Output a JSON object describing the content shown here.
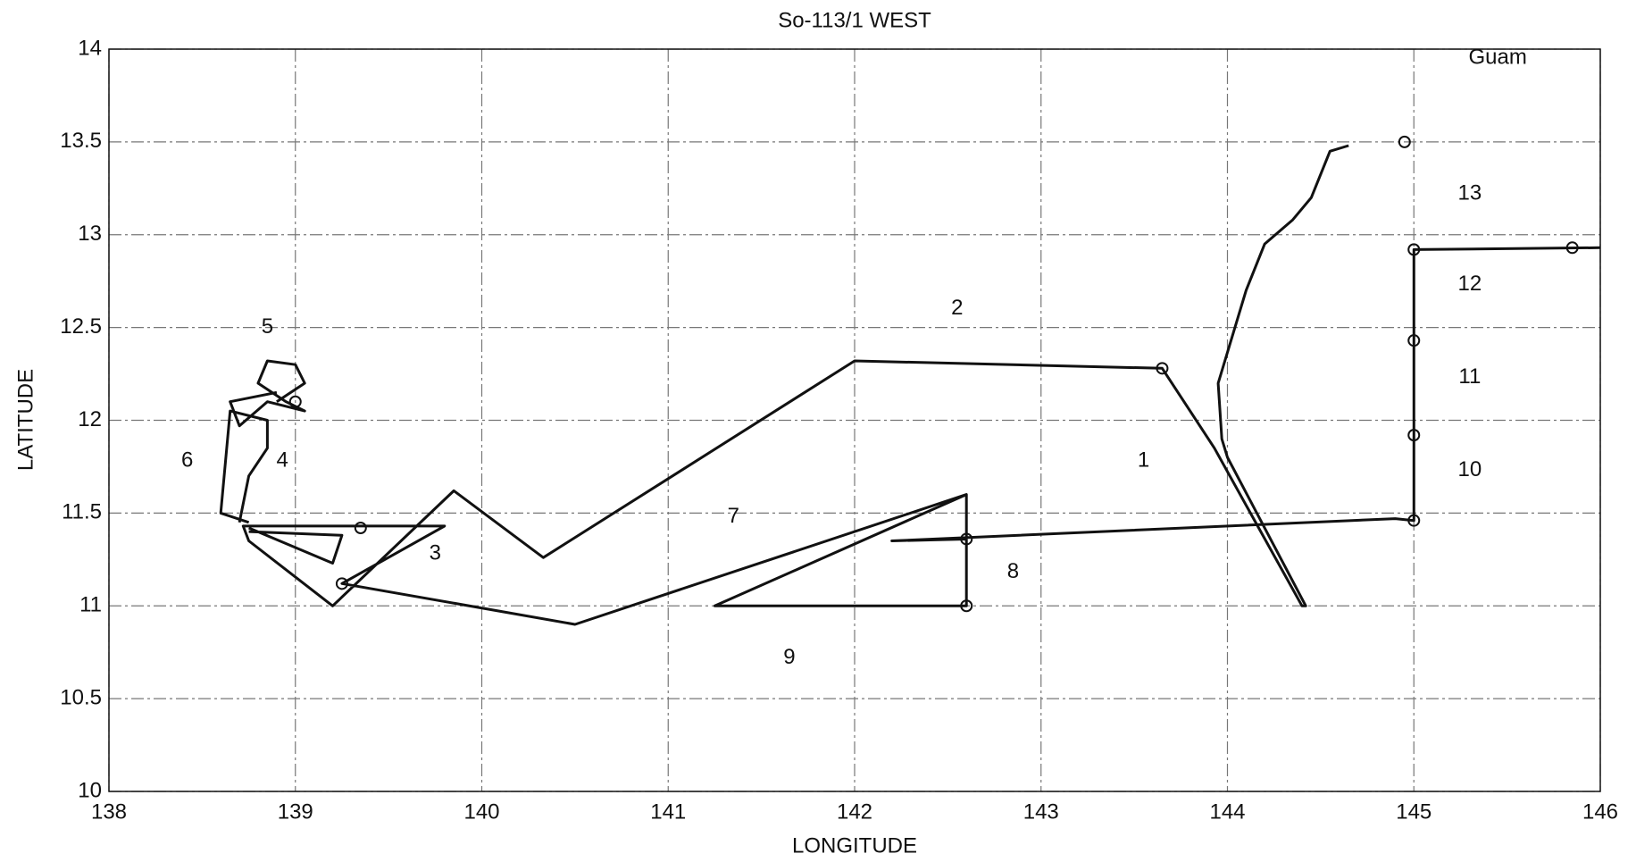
{
  "chart_data": {
    "type": "line",
    "title": "So-113/1 WEST",
    "xlabel": "LONGITUDE",
    "ylabel": "LATITUDE",
    "xlim": [
      138,
      146
    ],
    "ylim": [
      10,
      14
    ],
    "xticks": [
      138,
      139,
      140,
      141,
      142,
      143,
      144,
      145,
      146
    ],
    "yticks": [
      10,
      10.5,
      11,
      11.5,
      12,
      12.5,
      13,
      13.5,
      14
    ],
    "grid": true,
    "color": "#111111",
    "x": [
      144.65,
      144.55,
      144.45,
      144.35,
      144.2,
      144.1,
      143.95,
      143.97,
      144.0,
      144.42,
      144.4,
      143.93,
      143.65,
      142.0,
      140.33,
      139.85,
      139.2,
      138.75,
      138.72,
      139.8,
      139.25,
      140.5,
      142.6,
      142.6,
      141.25,
      142.6,
      null,
      138.75,
      139.25,
      139.2,
      138.75,
      null,
      138.7,
      138.75,
      138.85,
      138.85,
      138.65,
      138.6,
      138.75,
      null,
      138.9,
      139.05,
      139.0,
      138.85,
      138.8,
      138.95,
      139.05,
      138.85,
      138.7,
      138.65,
      138.9,
      null,
      142.6,
      142.2,
      144.9,
      145.0,
      145.0,
      146.0
    ],
    "values": [
      13.48,
      13.45,
      13.2,
      13.08,
      12.95,
      12.7,
      12.2,
      11.9,
      11.8,
      11.0,
      11.0,
      11.85,
      12.28,
      12.32,
      11.26,
      11.62,
      11.0,
      11.35,
      11.43,
      11.43,
      11.12,
      10.9,
      11.6,
      11.0,
      11.0,
      11.6,
      null,
      11.4,
      11.38,
      11.23,
      11.42,
      null,
      11.45,
      11.7,
      11.85,
      12.0,
      12.05,
      11.5,
      11.45,
      null,
      12.1,
      12.2,
      12.3,
      12.32,
      12.2,
      12.1,
      12.05,
      12.1,
      11.97,
      12.1,
      12.15,
      null,
      11.36,
      11.35,
      11.47,
      11.46,
      12.92,
      12.93
    ],
    "markers": {
      "x": [
        145.0,
        145.85,
        145.0,
        145.0,
        145.0,
        144.95,
        143.65,
        142.6,
        142.6,
        139.35,
        139.25,
        139.0
      ],
      "y": [
        12.92,
        12.93,
        12.43,
        11.92,
        11.46,
        13.5,
        12.28,
        11.36,
        11.0,
        11.42,
        11.12,
        12.1
      ]
    },
    "annotations": [
      {
        "text": "1",
        "x": 143.55,
        "y": 11.78
      },
      {
        "text": "2",
        "x": 142.55,
        "y": 12.6
      },
      {
        "text": "3",
        "x": 139.75,
        "y": 11.28
      },
      {
        "text": "4",
        "x": 138.93,
        "y": 11.78
      },
      {
        "text": "5",
        "x": 138.85,
        "y": 12.5
      },
      {
        "text": "6",
        "x": 138.42,
        "y": 11.78
      },
      {
        "text": "7",
        "x": 141.35,
        "y": 11.48
      },
      {
        "text": "8",
        "x": 142.85,
        "y": 11.18
      },
      {
        "text": "9",
        "x": 141.65,
        "y": 10.72
      },
      {
        "text": "10",
        "x": 145.3,
        "y": 11.73
      },
      {
        "text": "11",
        "x": 145.3,
        "y": 12.23
      },
      {
        "text": "12",
        "x": 145.3,
        "y": 12.73
      },
      {
        "text": "13",
        "x": 145.3,
        "y": 13.22
      },
      {
        "text": "Guam",
        "x": 145.45,
        "y": 13.95
      }
    ]
  }
}
